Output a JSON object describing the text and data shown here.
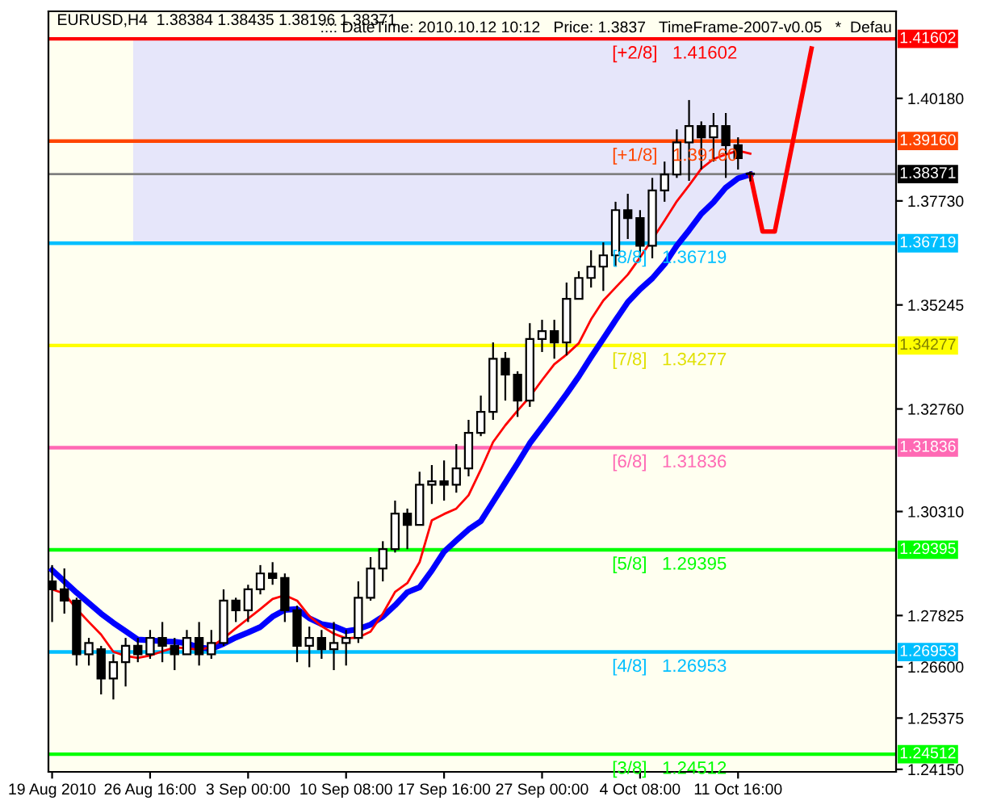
{
  "chart_data": {
    "type": "candlestick",
    "title": "EURUSD,H4  1.38384 1.38435 1.38196 1.38371",
    "subtitle": ":::: DateTime: 2010.10.12 10:12   Price: 1.3837   TimeFrame-2007-v0.05   *  Defau",
    "categories": [
      "19 Aug 2010",
      null,
      null,
      null,
      null,
      null,
      null,
      null,
      "26 Aug 16:00",
      null,
      null,
      null,
      null,
      null,
      null,
      null,
      "3 Sep 00:00",
      null,
      null,
      null,
      null,
      null,
      null,
      null,
      "10 Sep 08:00",
      null,
      null,
      null,
      null,
      null,
      null,
      null,
      "17 Sep 16:00",
      null,
      null,
      null,
      null,
      null,
      null,
      null,
      "27 Sep 00:00",
      null,
      null,
      null,
      null,
      null,
      null,
      null,
      "4 Oct 08:00",
      null,
      null,
      null,
      null,
      null,
      null,
      null,
      "11 Oct 16:00",
      null,
      null,
      null,
      null,
      null,
      null,
      null,
      null,
      null,
      null,
      null,
      null
    ],
    "ohlc": [
      [
        1.2864,
        1.2903,
        1.2767,
        1.2845
      ],
      [
        1.2845,
        1.2895,
        1.2787,
        1.2818
      ],
      [
        1.2818,
        1.2825,
        1.2663,
        1.269
      ],
      [
        1.269,
        1.2729,
        1.2663,
        1.2717
      ],
      [
        1.2702,
        1.271,
        1.2594,
        1.2632
      ],
      [
        1.2632,
        1.269,
        1.2582,
        1.2671
      ],
      [
        1.2671,
        1.2729,
        1.2613,
        1.271
      ],
      [
        1.271,
        1.2729,
        1.2671,
        1.269
      ],
      [
        1.269,
        1.2748,
        1.2679,
        1.2729
      ],
      [
        1.2729,
        1.2767,
        1.2671,
        1.271
      ],
      [
        1.271,
        1.2729,
        1.2652,
        1.269
      ],
      [
        1.269,
        1.2748,
        1.269,
        1.2729
      ],
      [
        1.2729,
        1.2767,
        1.2663,
        1.269
      ],
      [
        1.269,
        1.2748,
        1.2679,
        1.2717
      ],
      [
        1.2717,
        1.2845,
        1.271,
        1.2818
      ],
      [
        1.2818,
        1.2825,
        1.2767,
        1.2795
      ],
      [
        1.2795,
        1.2856,
        1.2767,
        1.2845
      ],
      [
        1.2845,
        1.2903,
        1.2833,
        1.2883
      ],
      [
        1.2883,
        1.291,
        1.2856,
        1.2872
      ],
      [
        1.2872,
        1.2883,
        1.2767,
        1.2795
      ],
      [
        1.2795,
        1.2806,
        1.2671,
        1.271
      ],
      [
        1.271,
        1.2756,
        1.2659,
        1.2729
      ],
      [
        1.2729,
        1.2748,
        1.2679,
        1.2702
      ],
      [
        1.2702,
        1.2767,
        1.2652,
        1.2717
      ],
      [
        1.2717,
        1.2748,
        1.2663,
        1.2729
      ],
      [
        1.2729,
        1.2864,
        1.2717,
        1.2825
      ],
      [
        1.2825,
        1.2922,
        1.2818,
        1.2895
      ],
      [
        1.2895,
        1.296,
        1.2864,
        1.2941
      ],
      [
        1.2941,
        1.3057,
        1.2933,
        1.3026
      ],
      [
        1.3026,
        1.3038,
        1.2941,
        1.2999
      ],
      [
        1.2999,
        1.3126,
        1.2999,
        1.3095
      ],
      [
        1.3095,
        1.3142,
        1.3049,
        1.3103
      ],
      [
        1.3103,
        1.3153,
        1.3057,
        1.3095
      ],
      [
        1.3095,
        1.3192,
        1.3076,
        1.3134
      ],
      [
        1.3134,
        1.325,
        1.3115,
        1.3219
      ],
      [
        1.3219,
        1.3308,
        1.3211,
        1.3269
      ],
      [
        1.3269,
        1.3435,
        1.325,
        1.3396
      ],
      [
        1.3396,
        1.3412,
        1.3296,
        1.3358
      ],
      [
        1.3358,
        1.3366,
        1.3257,
        1.3296
      ],
      [
        1.3296,
        1.3481,
        1.3281,
        1.3443
      ],
      [
        1.3443,
        1.3489,
        1.3412,
        1.3462
      ],
      [
        1.3462,
        1.3489,
        1.3396,
        1.3435
      ],
      [
        1.3435,
        1.3578,
        1.3404,
        1.3539
      ],
      [
        1.3539,
        1.3605,
        1.3539,
        1.3589
      ],
      [
        1.3589,
        1.3655,
        1.3566,
        1.3616
      ],
      [
        1.3616,
        1.3674,
        1.3558,
        1.3643
      ],
      [
        1.3643,
        1.3771,
        1.3616,
        1.3751
      ],
      [
        1.3751,
        1.379,
        1.3682,
        1.3732
      ],
      [
        1.3732,
        1.3751,
        1.3636,
        1.3666
      ],
      [
        1.3666,
        1.3828,
        1.3636,
        1.3798
      ],
      [
        1.3798,
        1.3867,
        1.3771,
        1.3836
      ],
      [
        1.3836,
        1.3944,
        1.3828,
        1.3913
      ],
      [
        1.3913,
        1.4014,
        1.3821,
        1.3952
      ],
      [
        1.3952,
        1.3963,
        1.3848,
        1.3925
      ],
      [
        1.3925,
        1.3983,
        1.3867,
        1.3952
      ],
      [
        1.3952,
        1.3983,
        1.3828,
        1.3906
      ],
      [
        1.3906,
        1.3925,
        1.3848,
        1.3875
      ],
      [
        1.38384,
        1.38435,
        1.38196,
        1.38371
      ],
      null,
      null,
      null,
      null,
      null,
      null,
      null,
      null,
      null,
      null,
      null
    ],
    "annotations": [
      {
        "text": "1.41602",
        "y": 1.41602
      },
      {
        "text": "1.39160",
        "y": 1.3916
      },
      {
        "text": "1.38371",
        "y": 1.38371
      },
      {
        "text": "1.36719",
        "y": 1.36719
      },
      {
        "text": "1.34277",
        "y": 1.34277
      },
      {
        "text": "1.31836",
        "y": 1.31836
      },
      {
        "text": "1.29395",
        "y": 1.29395
      },
      {
        "text": "1.26953",
        "y": 1.26953
      },
      {
        "text": "1.24512",
        "y": 1.24512
      }
    ],
    "color": "#000000",
    "series": [
      {
        "type": "line",
        "color": "#0000ff",
        "values": [
          1.2891,
          1.2864,
          1.2837,
          1.2812,
          1.2787,
          1.2765,
          1.2745,
          1.2725,
          1.2723,
          1.2721,
          1.272,
          1.2716,
          1.2706,
          1.2703,
          1.2715,
          1.273,
          1.2742,
          1.2755,
          1.278,
          1.2796,
          1.2798,
          1.2776,
          1.2762,
          1.2757,
          1.2745,
          1.275,
          1.2761,
          1.278,
          1.2807,
          1.2838,
          1.285,
          1.289,
          1.2935,
          1.2962,
          1.2988,
          1.3008,
          1.3054,
          1.31,
          1.3146,
          1.3194,
          1.3233,
          1.3272,
          1.3312,
          1.3354,
          1.34,
          1.3444,
          1.3488,
          1.3531,
          1.3562,
          1.3588,
          1.3622,
          1.3666,
          1.3703,
          1.3742,
          1.377,
          1.3805,
          1.3827,
          1.3836,
          null,
          null,
          null,
          null,
          null,
          null,
          null,
          null,
          null,
          null,
          null
        ]
      },
      {
        "type": "line",
        "color": "#ff0000",
        "values": [
          1.2845,
          1.2835,
          1.2798,
          1.2767,
          1.2737,
          1.2696,
          1.2686,
          1.2681,
          1.2687,
          1.2697,
          1.2706,
          1.2705,
          1.27,
          1.2708,
          1.2728,
          1.2752,
          1.2775,
          1.2798,
          1.2822,
          1.2831,
          1.2818,
          1.2781,
          1.2757,
          1.2739,
          1.2728,
          1.273,
          1.2744,
          1.2787,
          1.2839,
          1.286,
          1.291,
          1.301,
          1.3025,
          1.3038,
          1.307,
          1.3131,
          1.3197,
          1.3237,
          1.3272,
          1.3305,
          1.3345,
          1.3383,
          1.3406,
          1.3433,
          1.349,
          1.3535,
          1.3566,
          1.3597,
          1.3638,
          1.3681,
          1.3726,
          1.3772,
          1.381,
          1.385,
          1.3873,
          1.3884,
          1.3893,
          1.3886,
          null,
          null,
          null,
          null,
          null,
          null,
          null,
          null,
          null,
          null,
          null
        ]
      },
      {
        "type": "line",
        "color": "#ff0000",
        "values": [
          null,
          null,
          null,
          null,
          null,
          null,
          null,
          null,
          null,
          null,
          null,
          null,
          null,
          null,
          null,
          null,
          null,
          null,
          null,
          null,
          null,
          null,
          null,
          null,
          null,
          null,
          null,
          null,
          null,
          null,
          null,
          null,
          null,
          null,
          null,
          null,
          null,
          null,
          null,
          null,
          null,
          null,
          null,
          null,
          null,
          null,
          null,
          null,
          null,
          null,
          null,
          null,
          null,
          null,
          null,
          null,
          null,
          1.3836,
          1.37,
          1.37,
          null,
          null,
          1.4137,
          null,
          null,
          null,
          null,
          null,
          null
        ]
      }
    ],
    "ylim": [
      1.2409,
      1.4226
    ],
    "yticks": [
      {
        "value": 1.4018,
        "label": "1.40180"
      },
      {
        "value": 1.3773,
        "label": "1.37730"
      },
      {
        "value": 1.35245,
        "label": "1.35245"
      },
      {
        "value": 1.3276,
        "label": "1.32760"
      },
      {
        "value": 1.3031,
        "label": "1.30310"
      },
      {
        "value": 1.27825,
        "label": "1.27825"
      },
      {
        "value": 1.266,
        "label": "1.26600"
      },
      {
        "value": 1.25375,
        "label": "1.25375"
      },
      {
        "value": 1.2415,
        "label": "1.24150"
      }
    ],
    "bands": [
      {
        "axis": "y",
        "from": 1.36719,
        "to": 1.41602,
        "color": "#e6e6fa"
      }
    ],
    "ref_lines": [
      {
        "axis": "y",
        "value": 1.41602,
        "label": "[+2/8]   1.41602",
        "color": "#ff0000"
      },
      {
        "axis": "y",
        "value": 1.3916,
        "label": "[+1/8]   1.39160",
        "color": "#ff4500"
      },
      {
        "axis": "y",
        "value": 1.38371,
        "color": "#808080"
      },
      {
        "axis": "y",
        "value": 1.36719,
        "label": "[8/8]   1.36719",
        "color": "#00bfff"
      },
      {
        "axis": "y",
        "value": 1.34277,
        "label": "[7/8]   1.34277",
        "color": "#ffff00"
      },
      {
        "axis": "y",
        "value": 1.31836,
        "label": "[6/8]   1.31836",
        "color": "#ff69b4"
      },
      {
        "axis": "y",
        "value": 1.29395,
        "label": "[5/8]   1.29395",
        "color": "#00ff00"
      },
      {
        "axis": "y",
        "value": 1.26953,
        "label": "[4/8]   1.26953",
        "color": "#00bfff"
      },
      {
        "axis": "y",
        "value": 1.24512,
        "label": "[3/8]   1.24512",
        "color": "#00ff00"
      }
    ],
    "grid": false,
    "legend": false
  }
}
